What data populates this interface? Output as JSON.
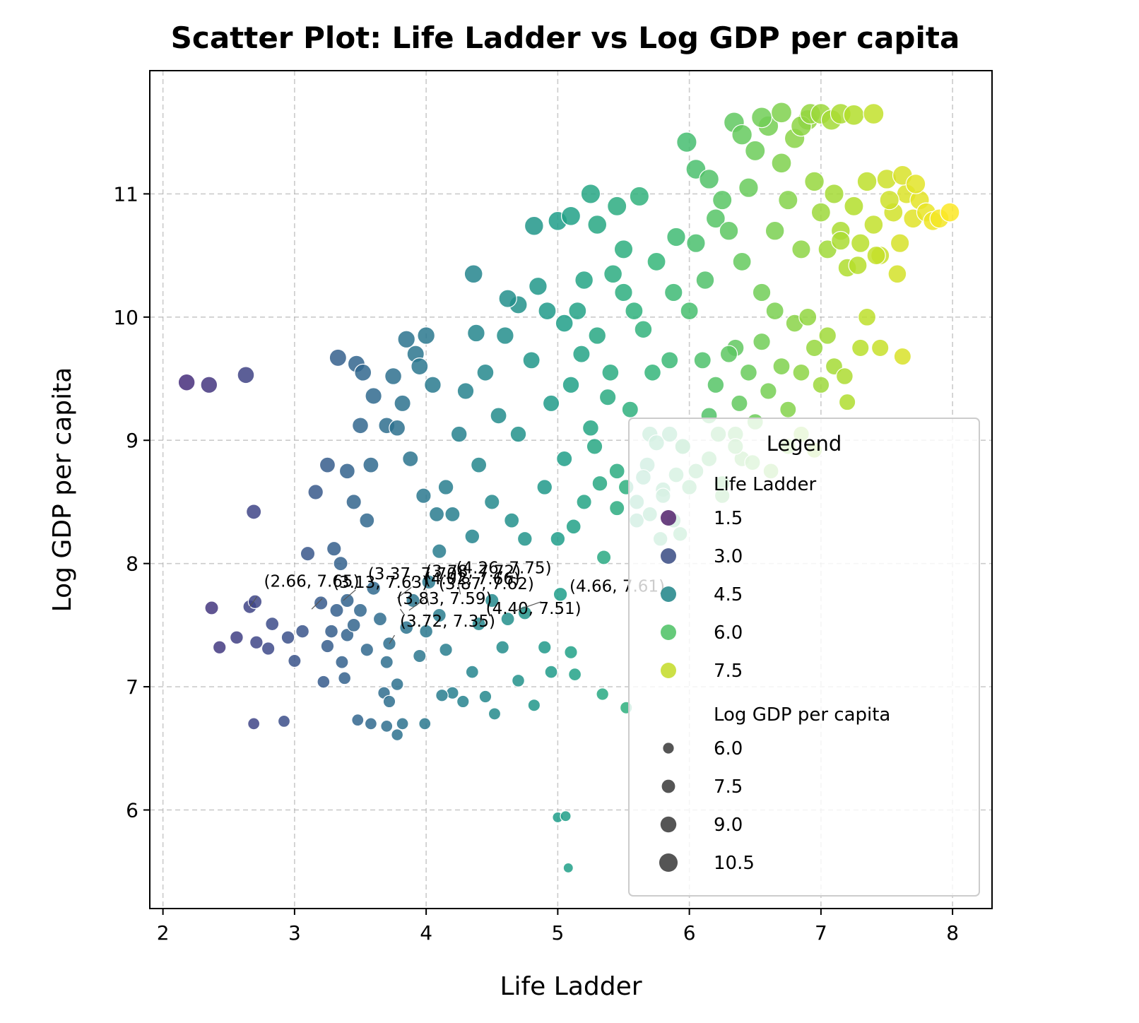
{
  "chart_data": {
    "type": "scatter",
    "title": "Scatter Plot: Life Ladder vs Log GDP per capita",
    "xlabel": "Life Ladder",
    "ylabel": "Log GDP per capita",
    "xlim": [
      1.9,
      8.3
    ],
    "ylim": [
      5.2,
      12.0
    ],
    "xticks": [
      2,
      3,
      4,
      5,
      6,
      7,
      8
    ],
    "yticks": [
      6,
      7,
      8,
      9,
      10,
      11
    ],
    "grid": true,
    "colormap": "viridis",
    "color_by": "Life Ladder",
    "size_by": "Log GDP per capita",
    "legend": {
      "title": "Legend",
      "placement": "lower-right",
      "hue_title": "Life Ladder",
      "hue_entries": [
        {
          "label": "1.5",
          "color": "#5b2f73"
        },
        {
          "label": "3.0",
          "color": "#42548a"
        },
        {
          "label": "4.5",
          "color": "#2a8b8e"
        },
        {
          "label": "6.0",
          "color": "#55c46b"
        },
        {
          "label": "7.5",
          "color": "#c7dd32"
        }
      ],
      "size_title": "Log GDP per capita",
      "size_entries": [
        {
          "label": "6.0",
          "value": 6.0
        },
        {
          "label": "7.5",
          "value": 7.5
        },
        {
          "label": "9.0",
          "value": 9.0
        },
        {
          "label": "10.5",
          "value": 10.5
        }
      ]
    },
    "points": [
      [
        2.18,
        9.47
      ],
      [
        2.35,
        9.45
      ],
      [
        2.63,
        9.53
      ],
      [
        2.69,
        8.42
      ],
      [
        2.37,
        7.64
      ],
      [
        2.43,
        7.32
      ],
      [
        2.56,
        7.4
      ],
      [
        2.66,
        7.65
      ],
      [
        2.7,
        7.69
      ],
      [
        2.71,
        7.36
      ],
      [
        2.8,
        7.31
      ],
      [
        2.83,
        7.51
      ],
      [
        2.95,
        7.4
      ],
      [
        3.0,
        7.21
      ],
      [
        3.06,
        7.45
      ],
      [
        3.1,
        8.08
      ],
      [
        3.16,
        8.58
      ],
      [
        2.69,
        6.7
      ],
      [
        2.92,
        6.72
      ],
      [
        3.2,
        7.68
      ],
      [
        3.25,
        7.33
      ],
      [
        3.28,
        7.45
      ],
      [
        3.32,
        7.62
      ],
      [
        3.36,
        7.2
      ],
      [
        3.4,
        7.7
      ],
      [
        3.3,
        8.12
      ],
      [
        3.35,
        8.0
      ],
      [
        3.4,
        8.75
      ],
      [
        3.25,
        8.8
      ],
      [
        3.33,
        9.67
      ],
      [
        3.47,
        9.62
      ],
      [
        3.52,
        9.55
      ],
      [
        3.6,
        9.36
      ],
      [
        3.5,
        9.12
      ],
      [
        3.45,
        8.5
      ],
      [
        3.55,
        8.35
      ],
      [
        3.58,
        8.8
      ],
      [
        3.7,
        9.12
      ],
      [
        3.75,
        9.52
      ],
      [
        3.85,
        9.82
      ],
      [
        3.92,
        9.7
      ],
      [
        3.82,
        9.3
      ],
      [
        3.78,
        9.1
      ],
      [
        3.88,
        8.85
      ],
      [
        3.95,
        9.6
      ],
      [
        4.0,
        9.85
      ],
      [
        4.05,
        9.45
      ],
      [
        3.98,
        8.55
      ],
      [
        4.08,
        8.4
      ],
      [
        3.4,
        7.42
      ],
      [
        3.45,
        7.5
      ],
      [
        3.5,
        7.62
      ],
      [
        3.55,
        7.3
      ],
      [
        3.6,
        7.8
      ],
      [
        3.65,
        7.55
      ],
      [
        3.7,
        7.2
      ],
      [
        3.72,
        7.35
      ],
      [
        3.78,
        7.02
      ],
      [
        3.85,
        7.48
      ],
      [
        3.9,
        7.7
      ],
      [
        3.95,
        7.25
      ],
      [
        4.0,
        7.45
      ],
      [
        4.02,
        7.85
      ],
      [
        4.1,
        7.58
      ],
      [
        4.15,
        7.3
      ],
      [
        4.2,
        6.95
      ],
      [
        4.28,
        6.88
      ],
      [
        4.35,
        7.12
      ],
      [
        4.4,
        7.51
      ],
      [
        4.45,
        6.92
      ],
      [
        4.5,
        7.7
      ],
      [
        4.52,
        6.78
      ],
      [
        4.58,
        7.32
      ],
      [
        4.62,
        7.55
      ],
      [
        4.7,
        7.05
      ],
      [
        4.75,
        7.6
      ],
      [
        4.82,
        6.85
      ],
      [
        4.9,
        7.32
      ],
      [
        4.95,
        7.12
      ],
      [
        5.02,
        7.75
      ],
      [
        5.1,
        7.28
      ],
      [
        5.13,
        7.1
      ],
      [
        5.34,
        6.94
      ],
      [
        5.52,
        6.83
      ],
      [
        3.22,
        7.04
      ],
      [
        3.38,
        7.07
      ],
      [
        3.48,
        6.73
      ],
      [
        3.58,
        6.7
      ],
      [
        3.7,
        6.68
      ],
      [
        3.78,
        6.61
      ],
      [
        3.82,
        6.7
      ],
      [
        3.99,
        6.7
      ],
      [
        3.68,
        6.95
      ],
      [
        3.72,
        6.88
      ],
      [
        4.12,
        6.93
      ],
      [
        5.0,
        5.94
      ],
      [
        5.06,
        5.95
      ],
      [
        5.08,
        5.53
      ],
      [
        4.1,
        8.1
      ],
      [
        4.15,
        8.62
      ],
      [
        4.2,
        8.4
      ],
      [
        4.25,
        9.05
      ],
      [
        4.3,
        9.4
      ],
      [
        4.35,
        8.22
      ],
      [
        4.4,
        8.8
      ],
      [
        4.45,
        9.55
      ],
      [
        4.5,
        8.5
      ],
      [
        4.55,
        9.2
      ],
      [
        4.6,
        9.85
      ],
      [
        4.65,
        8.35
      ],
      [
        4.7,
        9.05
      ],
      [
        4.75,
        8.2
      ],
      [
        4.8,
        9.65
      ],
      [
        4.85,
        10.25
      ],
      [
        4.9,
        8.62
      ],
      [
        4.95,
        9.3
      ],
      [
        4.36,
        10.35
      ],
      [
        4.38,
        9.87
      ],
      [
        4.7,
        10.1
      ],
      [
        4.82,
        10.74
      ],
      [
        5.0,
        10.78
      ],
      [
        5.1,
        10.82
      ],
      [
        5.25,
        11.0
      ],
      [
        5.3,
        10.75
      ],
      [
        5.45,
        10.9
      ],
      [
        5.62,
        10.98
      ],
      [
        5.5,
        10.55
      ],
      [
        5.2,
        10.3
      ],
      [
        5.05,
        9.95
      ],
      [
        4.92,
        10.05
      ],
      [
        4.62,
        10.15
      ],
      [
        5.0,
        8.2
      ],
      [
        5.05,
        8.85
      ],
      [
        5.1,
        9.45
      ],
      [
        5.15,
        10.05
      ],
      [
        5.2,
        8.5
      ],
      [
        5.25,
        9.1
      ],
      [
        5.3,
        9.85
      ],
      [
        5.35,
        8.05
      ],
      [
        5.4,
        9.55
      ],
      [
        5.45,
        8.75
      ],
      [
        5.5,
        10.2
      ],
      [
        5.55,
        9.25
      ],
      [
        5.6,
        8.35
      ],
      [
        5.65,
        9.9
      ],
      [
        5.7,
        9.05
      ],
      [
        5.75,
        10.45
      ],
      [
        5.8,
        8.6
      ],
      [
        5.85,
        9.65
      ],
      [
        5.9,
        10.65
      ],
      [
        5.95,
        8.95
      ],
      [
        6.0,
        10.05
      ],
      [
        5.12,
        8.3
      ],
      [
        5.28,
        8.95
      ],
      [
        5.38,
        9.35
      ],
      [
        5.58,
        10.05
      ],
      [
        5.72,
        9.55
      ],
      [
        5.88,
        10.2
      ],
      [
        5.18,
        9.7
      ],
      [
        5.42,
        10.35
      ],
      [
        5.68,
        8.8
      ],
      [
        5.32,
        8.65
      ],
      [
        5.98,
        11.42
      ],
      [
        6.05,
        11.2
      ],
      [
        6.15,
        11.12
      ],
      [
        6.25,
        10.95
      ],
      [
        6.05,
        10.6
      ],
      [
        6.12,
        10.3
      ],
      [
        6.2,
        10.8
      ],
      [
        6.3,
        10.7
      ],
      [
        6.35,
        9.75
      ],
      [
        6.4,
        10.45
      ],
      [
        6.45,
        11.05
      ],
      [
        6.5,
        11.35
      ],
      [
        6.55,
        10.2
      ],
      [
        6.6,
        11.55
      ],
      [
        6.65,
        10.7
      ],
      [
        6.7,
        11.25
      ],
      [
        6.75,
        10.95
      ],
      [
        6.8,
        11.45
      ],
      [
        6.85,
        10.55
      ],
      [
        6.9,
        11.6
      ],
      [
        6.95,
        11.1
      ],
      [
        6.34,
        11.58
      ],
      [
        6.4,
        11.48
      ],
      [
        6.55,
        11.62
      ],
      [
        6.7,
        11.66
      ],
      [
        6.85,
        11.55
      ],
      [
        6.92,
        11.65
      ],
      [
        7.0,
        11.65
      ],
      [
        7.08,
        11.6
      ],
      [
        7.15,
        11.65
      ],
      [
        7.25,
        11.64
      ],
      [
        7.4,
        11.65
      ],
      [
        6.1,
        9.65
      ],
      [
        6.15,
        9.2
      ],
      [
        6.2,
        9.45
      ],
      [
        6.25,
        8.65
      ],
      [
        6.3,
        9.7
      ],
      [
        6.35,
        9.05
      ],
      [
        6.4,
        8.85
      ],
      [
        6.45,
        9.55
      ],
      [
        6.5,
        9.15
      ],
      [
        6.55,
        9.8
      ],
      [
        6.6,
        9.4
      ],
      [
        6.65,
        10.05
      ],
      [
        6.7,
        9.6
      ],
      [
        6.75,
        9.25
      ],
      [
        6.8,
        9.95
      ],
      [
        6.85,
        9.55
      ],
      [
        6.9,
        10.0
      ],
      [
        6.95,
        9.75
      ],
      [
        7.0,
        9.45
      ],
      [
        7.05,
        9.85
      ],
      [
        7.1,
        9.6
      ],
      [
        7.2,
        9.31
      ],
      [
        7.3,
        9.75
      ],
      [
        7.35,
        10.0
      ],
      [
        7.45,
        9.75
      ],
      [
        7.62,
        9.68
      ],
      [
        7.18,
        9.52
      ],
      [
        6.38,
        9.3
      ],
      [
        6.22,
        9.05
      ],
      [
        7.0,
        10.85
      ],
      [
        7.05,
        10.55
      ],
      [
        7.1,
        11.0
      ],
      [
        7.15,
        10.7
      ],
      [
        7.2,
        10.4
      ],
      [
        7.25,
        10.9
      ],
      [
        7.3,
        10.6
      ],
      [
        7.35,
        11.1
      ],
      [
        7.4,
        10.75
      ],
      [
        7.45,
        10.5
      ],
      [
        7.5,
        11.12
      ],
      [
        7.55,
        10.85
      ],
      [
        7.6,
        10.6
      ],
      [
        7.65,
        11.0
      ],
      [
        7.7,
        10.8
      ],
      [
        7.75,
        10.95
      ],
      [
        7.8,
        10.85
      ],
      [
        7.85,
        10.78
      ],
      [
        7.9,
        10.8
      ],
      [
        7.98,
        10.85
      ],
      [
        7.62,
        11.15
      ],
      [
        7.72,
        11.08
      ],
      [
        7.52,
        10.95
      ],
      [
        7.42,
        10.5
      ],
      [
        7.28,
        10.42
      ],
      [
        7.15,
        10.62
      ],
      [
        7.58,
        10.35
      ],
      [
        5.75,
        8.98
      ],
      [
        5.8,
        8.55
      ],
      [
        5.85,
        9.05
      ],
      [
        5.9,
        8.72
      ],
      [
        5.95,
        8.95
      ],
      [
        6.0,
        8.62
      ],
      [
        5.7,
        8.4
      ],
      [
        5.65,
        8.7
      ],
      [
        5.6,
        8.5
      ],
      [
        5.88,
        8.35
      ],
      [
        6.05,
        8.75
      ],
      [
        6.15,
        8.85
      ],
      [
        6.25,
        8.55
      ],
      [
        6.35,
        8.95
      ],
      [
        6.48,
        8.82
      ],
      [
        6.62,
        8.75
      ],
      [
        6.75,
        8.95
      ],
      [
        6.85,
        9.05
      ],
      [
        6.95,
        8.92
      ],
      [
        5.78,
        8.2
      ],
      [
        5.93,
        8.24
      ],
      [
        5.52,
        8.62
      ],
      [
        5.45,
        8.45
      ]
    ],
    "annotations": [
      {
        "text": "(2.66, 7.65)",
        "x": 2.66,
        "y": 7.65
      },
      {
        "text": "(3.13, 7.63)",
        "x": 3.13,
        "y": 7.63
      },
      {
        "text": "(3.37, 7.70)",
        "x": 3.37,
        "y": 7.7
      },
      {
        "text": "(3.78, 7.72)",
        "x": 3.78,
        "y": 7.72
      },
      {
        "text": "(3.87, 7.62)",
        "x": 3.87,
        "y": 7.62
      },
      {
        "text": "(3.72, 7.35)",
        "x": 3.72,
        "y": 7.35
      },
      {
        "text": "(3.83, 7.59)",
        "x": 3.83,
        "y": 7.59
      },
      {
        "text": "(4.02, 7.66)",
        "x": 4.02,
        "y": 7.66
      },
      {
        "text": "(4.26, 7.75)",
        "x": 4.26,
        "y": 7.75
      },
      {
        "text": "(4.40, 7.51)",
        "x": 4.4,
        "y": 7.51
      },
      {
        "text": "(4.66, 7.61)",
        "x": 4.66,
        "y": 7.61
      }
    ]
  }
}
